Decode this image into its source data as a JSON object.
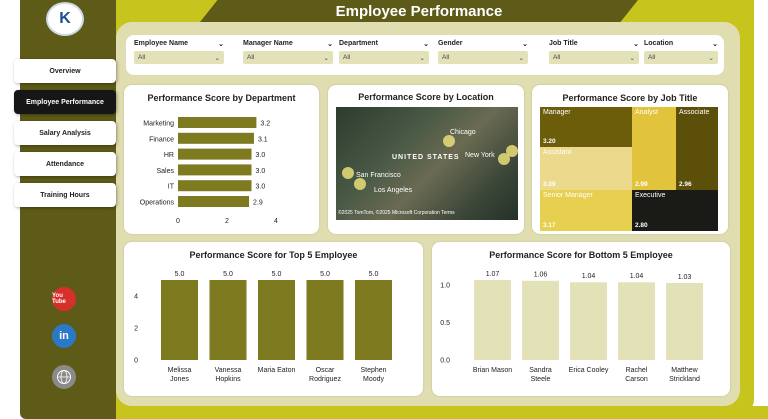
{
  "title": "Employee Performance",
  "logo": {
    "initials": "K"
  },
  "nav": [
    {
      "label": "Overview",
      "active": false
    },
    {
      "label": "Employee Performance",
      "active": true
    },
    {
      "label": "Salary Analysis",
      "active": false
    },
    {
      "label": "Attendance",
      "active": false
    },
    {
      "label": "Training Hours",
      "active": false
    }
  ],
  "social": {
    "youtube": "You Tube",
    "linkedin": "in"
  },
  "filters": [
    {
      "label": "Employee Name",
      "value": "All"
    },
    {
      "label": "Manager Name",
      "value": "All"
    },
    {
      "label": "Department",
      "value": "All"
    },
    {
      "label": "Gender",
      "value": "All"
    },
    {
      "label": "Job Title",
      "value": "All"
    },
    {
      "label": "Location",
      "value": "All"
    }
  ],
  "colors": {
    "olive": "#7d7a1f",
    "pale": "#e3e1b8",
    "dark": "#161616",
    "accent": "#c8c41e"
  },
  "map": {
    "title": "Performance Score by Location",
    "labels": [
      "UNITED STATES",
      "Chicago",
      "New York",
      "San Francisco",
      "Los Angeles"
    ],
    "attribution": "©2025 TomTom, ©2025 Microsoft Corporation Terms"
  },
  "treemap": {
    "title": "Performance Score by Job Title",
    "cells": [
      {
        "label": "Manager",
        "value": "3.20",
        "color": "#6b5d0a"
      },
      {
        "label": "Analyst",
        "value": "2.99",
        "color": "#e2c33c"
      },
      {
        "label": "Associate",
        "value": "2.96",
        "color": "#5c4f09"
      },
      {
        "label": "Assistant",
        "value": "3.09",
        "color": "#ecd98c"
      },
      {
        "label": "Senior Manager",
        "value": "3.17",
        "color": "#e7cf4f"
      },
      {
        "label": "Executive",
        "value": "2.80",
        "color": "#1a1a17"
      }
    ]
  },
  "chart_data": [
    {
      "type": "bar",
      "orientation": "horizontal",
      "title": "Performance Score by Department",
      "categories": [
        "Marketing",
        "Finance",
        "HR",
        "Sales",
        "IT",
        "Operations"
      ],
      "values": [
        3.2,
        3.1,
        3.0,
        3.0,
        3.0,
        2.9
      ],
      "xticks": [
        "0",
        "2",
        "4"
      ],
      "xlim": [
        0,
        4.5
      ],
      "color": "#7d7a1f"
    },
    {
      "type": "bar",
      "title": "Performance Score for Top 5 Employee",
      "categories": [
        [
          "Melissa",
          "Jones"
        ],
        [
          "Vanessa",
          "Hopkins"
        ],
        [
          "Maria Eaton"
        ],
        [
          "Oscar",
          "Rodriguez"
        ],
        [
          "Stephen",
          "Moody"
        ]
      ],
      "values": [
        5.0,
        5.0,
        5.0,
        5.0,
        5.0
      ],
      "yticks": [
        "0",
        "2",
        "4"
      ],
      "ylim": [
        0,
        5.0
      ],
      "color": "#7d7a1f"
    },
    {
      "type": "bar",
      "title": "Performance Score for Bottom 5 Employee",
      "categories": [
        [
          "Brian Mason"
        ],
        [
          "Sandra",
          "Steele"
        ],
        [
          "Erica Cooley"
        ],
        [
          "Rachel",
          "Carson"
        ],
        [
          "Matthew",
          "Strickland"
        ]
      ],
      "values": [
        1.07,
        1.06,
        1.04,
        1.04,
        1.03
      ],
      "yticks": [
        "0.0",
        "0.5",
        "1.0"
      ],
      "ylim": [
        0,
        1.07
      ],
      "color": "#e3e1b8"
    }
  ]
}
